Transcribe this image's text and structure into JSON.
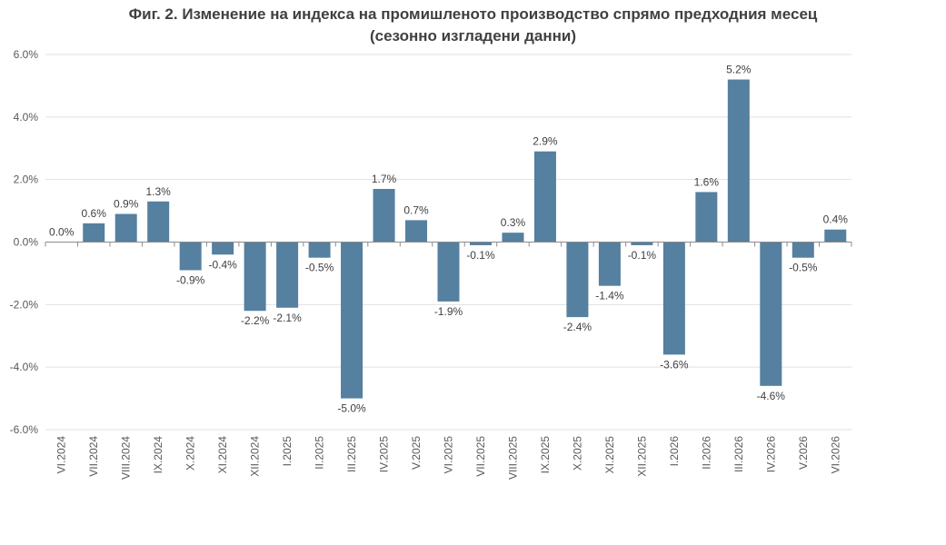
{
  "chart_data": {
    "type": "bar",
    "title_line1": "Фиг. 2. Изменение на индекса на промишленото производство спрямо предходния месец",
    "title_line2": "(сезонно изгладени данни)",
    "categories": [
      "VI.2024",
      "VII.2024",
      "VIII.2024",
      "IX.2024",
      "X.2024",
      "XI.2024",
      "XII.2024",
      "I.2025",
      "II.2025",
      "III.2025",
      "IV.2025",
      "V.2025",
      "VI.2025",
      "VII.2025",
      "VIII.2025",
      "IX.2025",
      "X.2025",
      "XI.2025",
      "XII.2025",
      "I.2026",
      "II.2026",
      "III.2026",
      "IV.2026",
      "V.2026",
      "VI.2026"
    ],
    "values": [
      0.0,
      0.6,
      0.9,
      1.3,
      -0.9,
      -0.4,
      -2.2,
      -2.1,
      -0.5,
      -5.0,
      1.7,
      0.7,
      -1.9,
      -0.1,
      0.3,
      2.9,
      -2.4,
      -1.4,
      -0.1,
      -3.6,
      1.6,
      5.2,
      -4.6,
      -0.5,
      0.4
    ],
    "data_labels": [
      "0.0%",
      "0.6%",
      "0.9%",
      "1.3%",
      "-0.9%",
      "-0.4%",
      "-2.2%",
      "-2.1%",
      "-0.5%",
      "-5.0%",
      "1.7%",
      "0.7%",
      "-1.9%",
      "-0.1%",
      "0.3%",
      "2.9%",
      "-2.4%",
      "-1.4%",
      "-0.1%",
      "-3.6%",
      "1.6%",
      "5.2%",
      "-4.6%",
      "-0.5%",
      "0.4%"
    ],
    "ylim": [
      -6,
      6
    ],
    "yticks": [
      6,
      4,
      2,
      0,
      -2,
      -4,
      -6
    ],
    "ytick_labels": [
      "6.0%",
      "4.0%",
      "2.0%",
      "0.0%",
      "-2.0%",
      "-4.0%",
      "-6.0%"
    ],
    "grid": true,
    "bar_color": "#55809f",
    "xlabel": "",
    "ylabel": ""
  }
}
